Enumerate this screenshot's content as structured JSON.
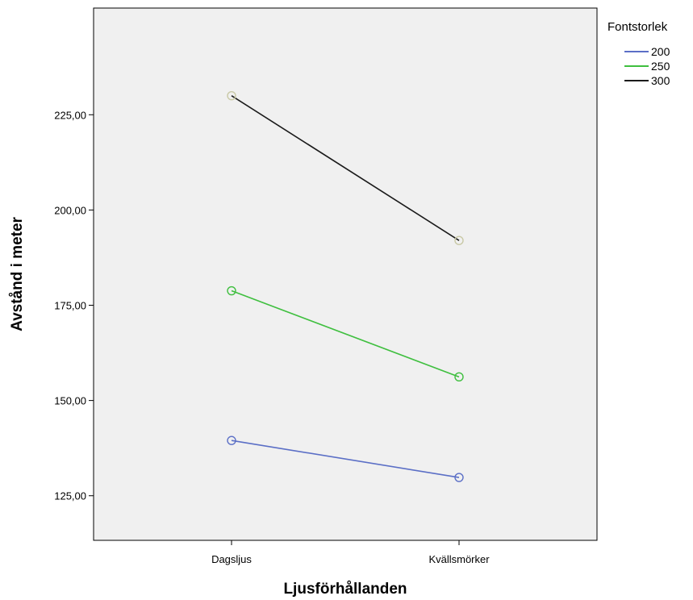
{
  "chart_data": {
    "type": "line",
    "categories": [
      "Dagsljus",
      "Kvällsmörker"
    ],
    "series": [
      {
        "name": "200",
        "values": [
          139.5,
          129.8
        ],
        "color": "#5b6fc6",
        "marker_color": "#5b6fc6"
      },
      {
        "name": "250",
        "values": [
          178.8,
          156.2
        ],
        "color": "#3fbf3f",
        "marker_color": "#3fbf3f"
      },
      {
        "name": "300",
        "values": [
          230.0,
          192.0
        ],
        "color": "#1a1a1a",
        "marker_color": "#c9c9a6"
      }
    ],
    "xlabel": "Ljusförhållanden",
    "ylabel": "Avstånd i meter",
    "ylim": [
      113.3,
      253.0
    ],
    "yticks": [
      125,
      150,
      175,
      200,
      225
    ],
    "ytick_labels": [
      "125,00",
      "150,00",
      "175,00",
      "200,00",
      "225,00"
    ],
    "legend_title": "Fontstorlek",
    "legend_position": "right",
    "plot_background": "#f0f0f0",
    "grid": false
  }
}
